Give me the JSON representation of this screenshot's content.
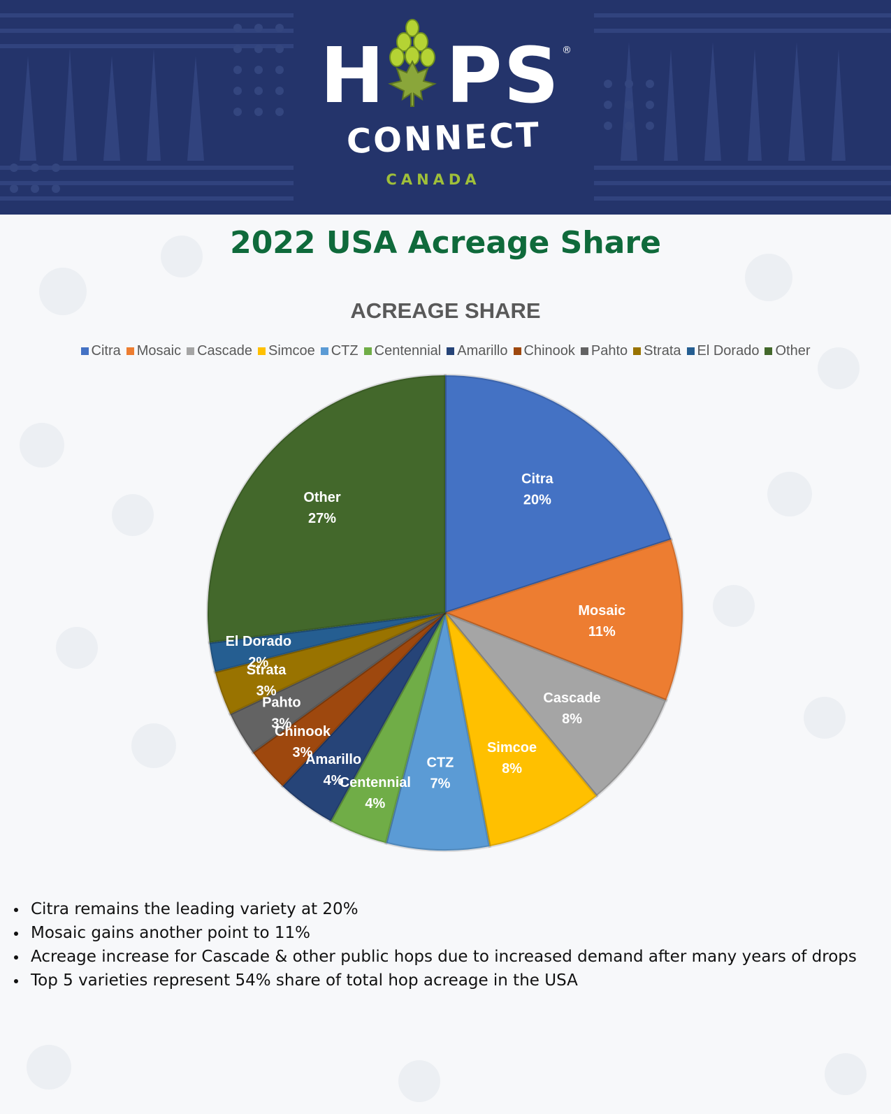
{
  "brand": {
    "logo_hops_left": "H",
    "logo_hops_right": "PS",
    "logo_registered": "®",
    "logo_connect": "CONNECT",
    "logo_canada": "CANADA",
    "logo_icon": "hop-cone-icon",
    "colors": {
      "banner": "#24346b",
      "hop_green": "#9fbf3a",
      "title_green": "#0f6a3b"
    }
  },
  "page": {
    "title": "2022 USA Acreage Share"
  },
  "chart_data": {
    "type": "pie",
    "title": "ACREAGE SHARE",
    "legend_position": "top",
    "slices": [
      {
        "label": "Citra",
        "value": 20,
        "pct_label": "20%",
        "color": "#4472c4"
      },
      {
        "label": "Mosaic",
        "value": 11,
        "pct_label": "11%",
        "color": "#ed7d31"
      },
      {
        "label": "Cascade",
        "value": 8,
        "pct_label": "8%",
        "color": "#a5a5a5"
      },
      {
        "label": "Simcoe",
        "value": 8,
        "pct_label": "8%",
        "color": "#ffc000"
      },
      {
        "label": "CTZ",
        "value": 7,
        "pct_label": "7%",
        "color": "#5b9bd5"
      },
      {
        "label": "Centennial",
        "value": 4,
        "pct_label": "4%",
        "color": "#70ad47"
      },
      {
        "label": "Amarillo",
        "value": 4,
        "pct_label": "4%",
        "color": "#264478"
      },
      {
        "label": "Chinook",
        "value": 3,
        "pct_label": "3%",
        "color": "#9e480e"
      },
      {
        "label": "Pahto",
        "value": 3,
        "pct_label": "3%",
        "color": "#636363"
      },
      {
        "label": "Strata",
        "value": 3,
        "pct_label": "3%",
        "color": "#997300"
      },
      {
        "label": "El Dorado",
        "value": 2,
        "pct_label": "2%",
        "color": "#255e91"
      },
      {
        "label": "Other",
        "value": 27,
        "pct_label": "27%",
        "color": "#43682b"
      }
    ]
  },
  "notes": [
    "Citra remains the leading variety at 20%",
    "Mosaic gains another point to 11%",
    "Acreage increase for Cascade & other public hops due to increased demand after many years of drops",
    "Top 5 varieties represent 54% share of total hop acreage in the USA"
  ]
}
